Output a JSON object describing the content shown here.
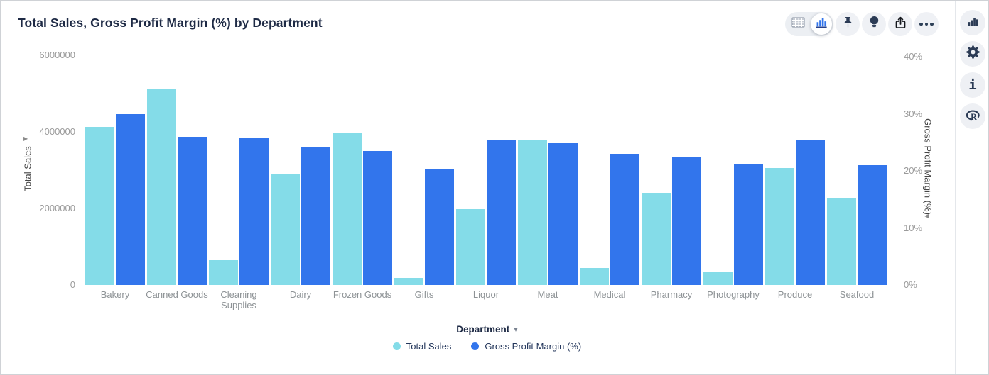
{
  "window": {
    "title": "Total Sales, Gross Profit Margin (%) by Department"
  },
  "toolbar": {
    "view_toggle": {
      "options": [
        "table-view",
        "chart-view"
      ],
      "selected": "chart-view"
    },
    "buttons": [
      {
        "name": "pin",
        "icon": "pin-icon"
      },
      {
        "name": "insights",
        "icon": "lightbulb-icon"
      },
      {
        "name": "export",
        "icon": "export-icon"
      },
      {
        "name": "more-options",
        "icon": "ellipsis-icon"
      }
    ]
  },
  "sidebar": {
    "buttons": [
      {
        "name": "chart-type",
        "icon": "bar-chart-icon"
      },
      {
        "name": "settings",
        "icon": "gear-icon"
      },
      {
        "name": "info",
        "icon": "info-icon"
      },
      {
        "name": "r-script",
        "icon": "r-logo-icon"
      }
    ]
  },
  "chart_data": {
    "type": "bar",
    "title": "Total Sales, Gross Profit Margin (%) by Department",
    "categories": [
      "Bakery",
      "Canned Goods",
      "Cleaning Supplies",
      "Dairy",
      "Frozen Goods",
      "Gifts",
      "Liquor",
      "Meat",
      "Medical",
      "Pharmacy",
      "Photography",
      "Produce",
      "Seafood"
    ],
    "series": [
      {
        "name": "Total Sales",
        "axis": "left",
        "color": "#84DCE8",
        "values": [
          4130000,
          5130000,
          650000,
          2910000,
          3960000,
          190000,
          1990000,
          3790000,
          440000,
          2410000,
          340000,
          3060000,
          2260000
        ]
      },
      {
        "name": "Gross Profit Margin (%)",
        "axis": "right",
        "color": "#3275EC",
        "values": [
          30,
          26,
          25.8,
          24.2,
          23.5,
          20.2,
          25.4,
          24.8,
          23,
          22.3,
          21.2,
          25.4,
          21
        ]
      }
    ],
    "left_axis": {
      "title": "Total Sales",
      "max": 6000000,
      "ticks": [
        {
          "label": "0",
          "value": 0
        },
        {
          "label": "2000000",
          "value": 2000000
        },
        {
          "label": "4000000",
          "value": 4000000
        },
        {
          "label": "6000000",
          "value": 6000000
        }
      ]
    },
    "right_axis": {
      "title": "Gross Profit Margin (%)",
      "max": 40,
      "ticks": [
        {
          "label": "0%",
          "value": 0
        },
        {
          "label": "10%",
          "value": 10
        },
        {
          "label": "20%",
          "value": 20
        },
        {
          "label": "30%",
          "value": 30
        },
        {
          "label": "40%",
          "value": 40
        }
      ]
    },
    "x_axis": {
      "label": "Department"
    },
    "legend": [
      {
        "label": "Total Sales",
        "color": "#84DCE8"
      },
      {
        "label": "Gross Profit Margin (%)",
        "color": "#3275EC"
      }
    ],
    "grid": false,
    "legend_position": "bottom"
  },
  "colors": {
    "accent_cyan": "#84DCE8",
    "accent_blue": "#3275EC",
    "navy": "#1E2A45",
    "tick_gray": "#9B9B9B"
  }
}
